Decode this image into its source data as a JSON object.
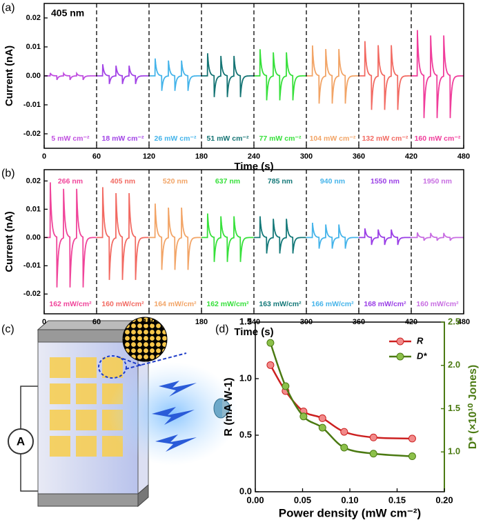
{
  "panels": [
    {
      "label": "(a)"
    },
    {
      "label": "(b)"
    },
    {
      "label": "(c)"
    },
    {
      "label": "(d)"
    }
  ],
  "schematic": {
    "ammeter_label": "A"
  },
  "chart_data": [
    {
      "type": "pulse",
      "annotation": "405 nm",
      "xlabel": "Time (s)",
      "ylabel": "Current (nA)",
      "xlim": [
        0,
        480
      ],
      "xticks": [
        0,
        60,
        120,
        180,
        240,
        300,
        360,
        420,
        480
      ],
      "ylim": [
        -0.025,
        0.025
      ],
      "yticks": [
        {
          "value": -0.02,
          "label": "-0.02"
        },
        {
          "value": -0.01,
          "label": "-0.01"
        },
        {
          "value": 0,
          "label": "0.00"
        },
        {
          "value": 0.01,
          "label": "0.01"
        },
        {
          "value": 0.02,
          "label": "0.02"
        }
      ],
      "dividers": [
        60,
        120,
        180,
        240,
        300,
        360,
        420
      ],
      "series": [
        {
          "name": "5 mW cm⁻²",
          "color": "#c04fe0",
          "start": 0,
          "peak": 0.001,
          "trough": -0.0015
        },
        {
          "name": "18 mW cm⁻²",
          "color": "#a243e6",
          "start": 60,
          "peak": 0.004,
          "trough": -0.003
        },
        {
          "name": "26 mW cm⁻²",
          "color": "#45b4ea",
          "start": 120,
          "peak": 0.006,
          "trough": -0.0055
        },
        {
          "name": "51 mW cm⁻²",
          "color": "#137373",
          "start": 180,
          "peak": 0.0078,
          "trough": -0.0078
        },
        {
          "name": "77 mW cm⁻²",
          "color": "#36e03a",
          "start": 240,
          "peak": 0.0092,
          "trough": -0.009
        },
        {
          "name": "104 mW cm⁻²",
          "color": "#f2a466",
          "start": 300,
          "peak": 0.0105,
          "trough": -0.0102
        },
        {
          "name": "132 mW cm⁻²",
          "color": "#f26a62",
          "start": 360,
          "peak": 0.012,
          "trough": -0.0125
        },
        {
          "name": "160 mW cm⁻²",
          "color": "#f03d9b",
          "start": 420,
          "peak": 0.0158,
          "trough": -0.0155
        }
      ]
    },
    {
      "type": "pulse",
      "xlabel": "Time (s)",
      "ylabel": "Current (nA)",
      "xlim": [
        0,
        480
      ],
      "xticks": [
        0,
        60,
        120,
        180,
        240,
        300,
        360,
        420,
        480
      ],
      "ylim": [
        -0.027,
        0.024
      ],
      "yticks": [
        {
          "value": -0.02,
          "label": "-0.02"
        },
        {
          "value": -0.01,
          "label": "-0.01"
        },
        {
          "value": 0,
          "label": "0.00"
        },
        {
          "value": 0.01,
          "label": "0.01"
        },
        {
          "value": 0.02,
          "label": "0.02"
        }
      ],
      "dividers": [
        60,
        120,
        180,
        240,
        300,
        360,
        420
      ],
      "series": [
        {
          "name": "266 nm",
          "power": "162 mW/cm²",
          "color": "#f0449a",
          "start": 0,
          "peak": 0.0195,
          "trough": -0.0188
        },
        {
          "name": "405 nm",
          "power": "160 mW/cm²",
          "color": "#f26a62",
          "start": 60,
          "peak": 0.0178,
          "trough": -0.016
        },
        {
          "name": "520 nm",
          "power": "164 mW/cm²",
          "color": "#f2a466",
          "start": 120,
          "peak": 0.012,
          "trough": -0.0122
        },
        {
          "name": "637 nm",
          "power": "162 mW/cm²",
          "color": "#36e03a",
          "start": 180,
          "peak": 0.0085,
          "trough": -0.0092
        },
        {
          "name": "785 nm",
          "power": "163 mW/cm²",
          "color": "#137878",
          "start": 240,
          "peak": 0.0075,
          "trough": -0.006
        },
        {
          "name": "940 nm",
          "power": "166 mW/cm²",
          "color": "#45b4ea",
          "start": 300,
          "peak": 0.0052,
          "trough": -0.0042
        },
        {
          "name": "1550 nm",
          "power": "168 mW/cm²",
          "color": "#9a3ee6",
          "start": 360,
          "peak": 0.0032,
          "trough": -0.0028
        },
        {
          "name": "1950 nm",
          "power": "160 mW/cm²",
          "color": "#c86ee2",
          "start": 420,
          "peak": 0.0018,
          "trough": -0.0012
        }
      ]
    },
    {
      "type": "line",
      "xlabel": "Power density (mW cm⁻²)",
      "ylabel": "R (mA W-1)",
      "y2label": "D* (×10¹⁰ Jones)",
      "xlim": [
        0,
        0.2
      ],
      "xticks": [
        {
          "value": 0,
          "label": "0.00"
        },
        {
          "value": 0.05,
          "label": "0.05"
        },
        {
          "value": 0.1,
          "label": "0.10"
        },
        {
          "value": 0.15,
          "label": "0.15"
        },
        {
          "value": 0.2,
          "label": "0.20"
        }
      ],
      "ylim": [
        0,
        1.5
      ],
      "yticks": [
        {
          "value": 0,
          "label": "0.0"
        },
        {
          "value": 0.5,
          "label": "0.5"
        },
        {
          "value": 1,
          "label": "1.0"
        },
        {
          "value": 1.5,
          "label": "1.5"
        }
      ],
      "y2lim": [
        0.54,
        2.5
      ],
      "y2ticks": [
        {
          "value": 1,
          "label": "1.0"
        },
        {
          "value": 1.5,
          "label": "1.5"
        },
        {
          "value": 2,
          "label": "2.0"
        },
        {
          "value": 2.5,
          "label": "2.5"
        }
      ],
      "legend": "upper right",
      "x": [
        0.016,
        0.032,
        0.051,
        0.071,
        0.094,
        0.125,
        0.166
      ],
      "series": [
        {
          "name": "R",
          "color": "#cc2020",
          "marker": "#f28a8a",
          "values": [
            1.12,
            0.89,
            0.71,
            0.65,
            0.53,
            0.48,
            0.47
          ]
        },
        {
          "name": "D*",
          "color": "#4b7a12",
          "marker": "#8cc04a",
          "axis": "y2",
          "values": [
            2.26,
            1.76,
            1.41,
            1.28,
            1.05,
            0.98,
            0.95
          ]
        }
      ]
    }
  ]
}
